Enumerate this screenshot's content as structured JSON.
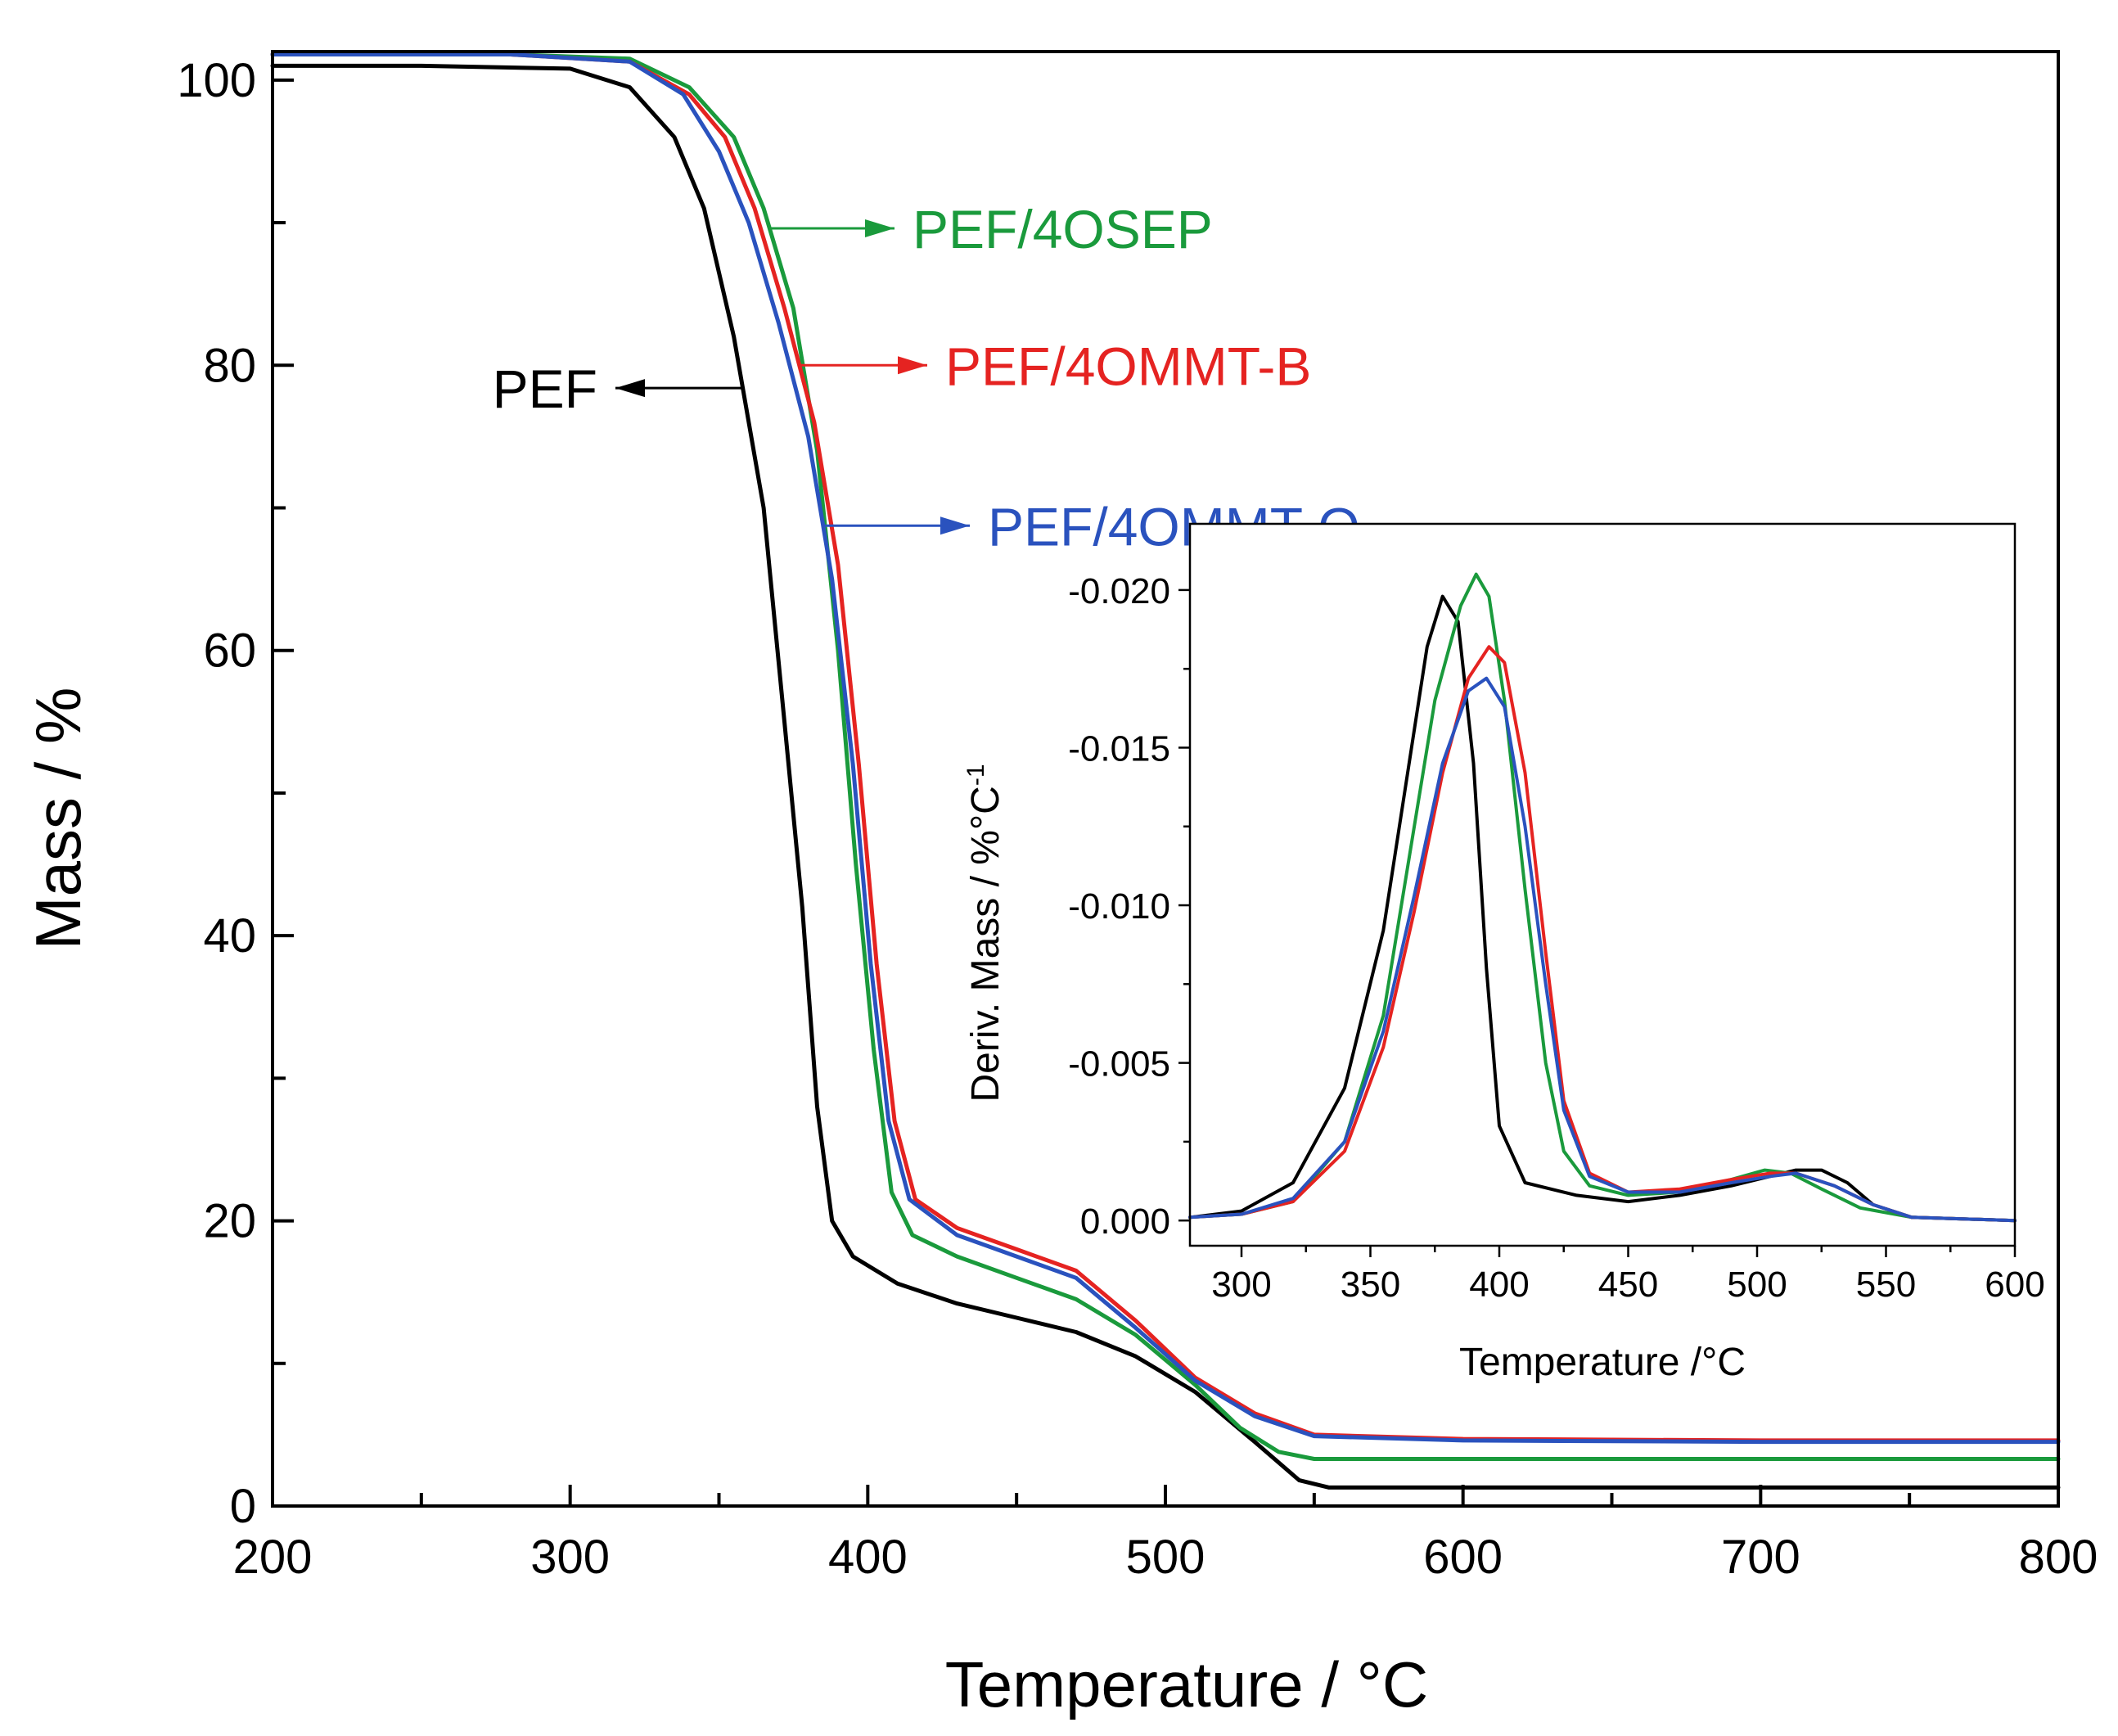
{
  "chart_data": [
    {
      "type": "line",
      "title": "",
      "xlabel": "Temperature / °C",
      "ylabel": "Mass / %",
      "xlim": [
        200,
        800
      ],
      "ylim": [
        0,
        102
      ],
      "x_ticks": [
        200,
        300,
        400,
        500,
        600,
        700,
        800
      ],
      "x_tick_labels": [
        "200",
        "300",
        "400",
        "500",
        "600",
        "700",
        "800"
      ],
      "y_ticks": [
        0,
        20,
        40,
        60,
        80,
        100
      ],
      "y_tick_labels": [
        "0",
        "20",
        "40",
        "60",
        "80",
        "100"
      ],
      "grid": false,
      "series": [
        {
          "name": "PEF",
          "color": "#000000",
          "points": [
            [
              200,
              101
            ],
            [
              250,
              101
            ],
            [
              300,
              100.8
            ],
            [
              320,
              99.5
            ],
            [
              335,
              96
            ],
            [
              345,
              91
            ],
            [
              355,
              82
            ],
            [
              365,
              70
            ],
            [
              372,
              55
            ],
            [
              378,
              42
            ],
            [
              383,
              28
            ],
            [
              388,
              20
            ],
            [
              395,
              17.5
            ],
            [
              410,
              15.6
            ],
            [
              430,
              14.2
            ],
            [
              450,
              13.2
            ],
            [
              470,
              12.2
            ],
            [
              490,
              10.5
            ],
            [
              510,
              8
            ],
            [
              530,
              4.5
            ],
            [
              545,
              1.8
            ],
            [
              555,
              1.3
            ],
            [
              600,
              1.3
            ],
            [
              700,
              1.3
            ],
            [
              800,
              1.3
            ]
          ]
        },
        {
          "name": "PEF/4OSEP",
          "color": "#1a9a3c",
          "points": [
            [
              200,
              101.8
            ],
            [
              280,
              101.8
            ],
            [
              320,
              101.5
            ],
            [
              340,
              99.5
            ],
            [
              355,
              96
            ],
            [
              365,
              91
            ],
            [
              375,
              84
            ],
            [
              383,
              74
            ],
            [
              390,
              60
            ],
            [
              396,
              45
            ],
            [
              402,
              32
            ],
            [
              408,
              22
            ],
            [
              415,
              19
            ],
            [
              430,
              17.5
            ],
            [
              450,
              16
            ],
            [
              470,
              14.5
            ],
            [
              490,
              12
            ],
            [
              510,
              8.5
            ],
            [
              525,
              5.5
            ],
            [
              538,
              3.8
            ],
            [
              550,
              3.3
            ],
            [
              600,
              3.3
            ],
            [
              700,
              3.3
            ],
            [
              800,
              3.3
            ]
          ]
        },
        {
          "name": "PEF/4OMMT-B",
          "color": "#e52321",
          "points": [
            [
              200,
              101.8
            ],
            [
              280,
              101.8
            ],
            [
              320,
              101.3
            ],
            [
              340,
              99
            ],
            [
              352,
              96
            ],
            [
              362,
              91
            ],
            [
              372,
              84
            ],
            [
              382,
              76
            ],
            [
              390,
              66
            ],
            [
              397,
              52
            ],
            [
              403,
              38
            ],
            [
              409,
              27
            ],
            [
              416,
              21.5
            ],
            [
              430,
              19.5
            ],
            [
              450,
              18
            ],
            [
              470,
              16.5
            ],
            [
              490,
              13
            ],
            [
              510,
              9
            ],
            [
              530,
              6.5
            ],
            [
              550,
              5
            ],
            [
              600,
              4.7
            ],
            [
              700,
              4.6
            ],
            [
              800,
              4.6
            ]
          ]
        },
        {
          "name": "PEF/4OMMT-O",
          "color": "#2a52be",
          "points": [
            [
              200,
              101.8
            ],
            [
              280,
              101.8
            ],
            [
              320,
              101.3
            ],
            [
              338,
              99
            ],
            [
              350,
              95
            ],
            [
              360,
              90
            ],
            [
              370,
              83
            ],
            [
              380,
              75
            ],
            [
              388,
              65
            ],
            [
              395,
              52
            ],
            [
              401,
              38
            ],
            [
              407,
              27
            ],
            [
              414,
              21.5
            ],
            [
              430,
              19
            ],
            [
              450,
              17.5
            ],
            [
              470,
              16
            ],
            [
              490,
              12.5
            ],
            [
              510,
              8.8
            ],
            [
              530,
              6.3
            ],
            [
              550,
              4.9
            ],
            [
              600,
              4.6
            ],
            [
              700,
              4.5
            ],
            [
              800,
              4.5
            ]
          ]
        }
      ],
      "annotations": [
        {
          "text": "PEF/4OSEP",
          "series": "PEF/4OSEP",
          "arrow_from_x": 367
        },
        {
          "text": "PEF/4OMMT-B",
          "series": "PEF/4OMMT-B",
          "arrow_from_x": 377
        },
        {
          "text": "PEF",
          "series": "PEF",
          "arrow_from_x": 358
        },
        {
          "text": "PEF/4OMMT-O",
          "series": "PEF/4OMMT-O",
          "arrow_from_x": 385
        }
      ]
    },
    {
      "type": "line",
      "title": "",
      "xlabel": "Temperature /°C",
      "ylabel": "Deriv. Mass / %°C",
      "ylabel_superscript": "-1",
      "xlim": [
        280,
        600
      ],
      "ylim": [
        0.0008,
        -0.0221
      ],
      "x_ticks": [
        300,
        350,
        400,
        450,
        500,
        550,
        600
      ],
      "x_tick_labels": [
        "300",
        "350",
        "400",
        "450",
        "500",
        "550",
        "600"
      ],
      "y_ticks": [
        0.0,
        -0.005,
        -0.01,
        -0.015,
        -0.02
      ],
      "y_tick_labels": [
        "0.000",
        "-0.005",
        "-0.010",
        "-0.015",
        "-0.020"
      ],
      "grid": false,
      "series": [
        {
          "name": "PEF",
          "color": "#000000",
          "points": [
            [
              280,
              -0.0001
            ],
            [
              300,
              -0.0003
            ],
            [
              320,
              -0.0012
            ],
            [
              340,
              -0.0042
            ],
            [
              355,
              -0.0092
            ],
            [
              365,
              -0.0145
            ],
            [
              372,
              -0.0182
            ],
            [
              378,
              -0.0198
            ],
            [
              384,
              -0.019
            ],
            [
              390,
              -0.0145
            ],
            [
              395,
              -0.008
            ],
            [
              400,
              -0.003
            ],
            [
              410,
              -0.0012
            ],
            [
              430,
              -0.0008
            ],
            [
              450,
              -0.0006
            ],
            [
              470,
              -0.0008
            ],
            [
              490,
              -0.0011
            ],
            [
              505,
              -0.0014
            ],
            [
              515,
              -0.0016
            ],
            [
              525,
              -0.0016
            ],
            [
              535,
              -0.0012
            ],
            [
              545,
              -0.0005
            ],
            [
              560,
              -0.0001
            ],
            [
              600,
              0.0
            ]
          ]
        },
        {
          "name": "PEF/4OSEP",
          "color": "#1a9a3c",
          "points": [
            [
              280,
              -0.0001
            ],
            [
              300,
              -0.0002
            ],
            [
              320,
              -0.0006
            ],
            [
              340,
              -0.0025
            ],
            [
              355,
              -0.0065
            ],
            [
              365,
              -0.0115
            ],
            [
              375,
              -0.0165
            ],
            [
              385,
              -0.0195
            ],
            [
              391,
              -0.0205
            ],
            [
              396,
              -0.0198
            ],
            [
              402,
              -0.0165
            ],
            [
              410,
              -0.0105
            ],
            [
              418,
              -0.005
            ],
            [
              425,
              -0.0022
            ],
            [
              435,
              -0.0011
            ],
            [
              450,
              -0.0008
            ],
            [
              470,
              -0.0009
            ],
            [
              490,
              -0.0013
            ],
            [
              503,
              -0.0016
            ],
            [
              513,
              -0.0015
            ],
            [
              525,
              -0.001
            ],
            [
              540,
              -0.0004
            ],
            [
              560,
              -0.0001
            ],
            [
              600,
              0.0
            ]
          ]
        },
        {
          "name": "PEF/4OMMT-B",
          "color": "#e52321",
          "points": [
            [
              280,
              -0.0001
            ],
            [
              300,
              -0.0002
            ],
            [
              320,
              -0.0006
            ],
            [
              340,
              -0.0022
            ],
            [
              355,
              -0.0055
            ],
            [
              367,
              -0.0098
            ],
            [
              378,
              -0.0142
            ],
            [
              388,
              -0.0172
            ],
            [
              396,
              -0.0182
            ],
            [
              402,
              -0.0177
            ],
            [
              410,
              -0.0142
            ],
            [
              418,
              -0.0085
            ],
            [
              425,
              -0.0038
            ],
            [
              435,
              -0.0015
            ],
            [
              450,
              -0.0009
            ],
            [
              470,
              -0.001
            ],
            [
              490,
              -0.0013
            ],
            [
              505,
              -0.0015
            ],
            [
              515,
              -0.0015
            ],
            [
              530,
              -0.0011
            ],
            [
              545,
              -0.0005
            ],
            [
              560,
              -0.0001
            ],
            [
              600,
              0.0
            ]
          ]
        },
        {
          "name": "PEF/4OMMT-O",
          "color": "#2a52be",
          "points": [
            [
              280,
              -0.0001
            ],
            [
              300,
              -0.0002
            ],
            [
              320,
              -0.0007
            ],
            [
              340,
              -0.0025
            ],
            [
              355,
              -0.006
            ],
            [
              367,
              -0.0103
            ],
            [
              378,
              -0.0145
            ],
            [
              388,
              -0.0168
            ],
            [
              395,
              -0.0172
            ],
            [
              402,
              -0.0163
            ],
            [
              410,
              -0.0125
            ],
            [
              418,
              -0.0075
            ],
            [
              425,
              -0.0035
            ],
            [
              435,
              -0.0014
            ],
            [
              450,
              -0.0009
            ],
            [
              470,
              -0.0009
            ],
            [
              490,
              -0.0012
            ],
            [
              505,
              -0.0014
            ],
            [
              515,
              -0.0015
            ],
            [
              530,
              -0.0011
            ],
            [
              545,
              -0.0005
            ],
            [
              560,
              -0.0001
            ],
            [
              600,
              0.0
            ]
          ]
        }
      ]
    }
  ]
}
